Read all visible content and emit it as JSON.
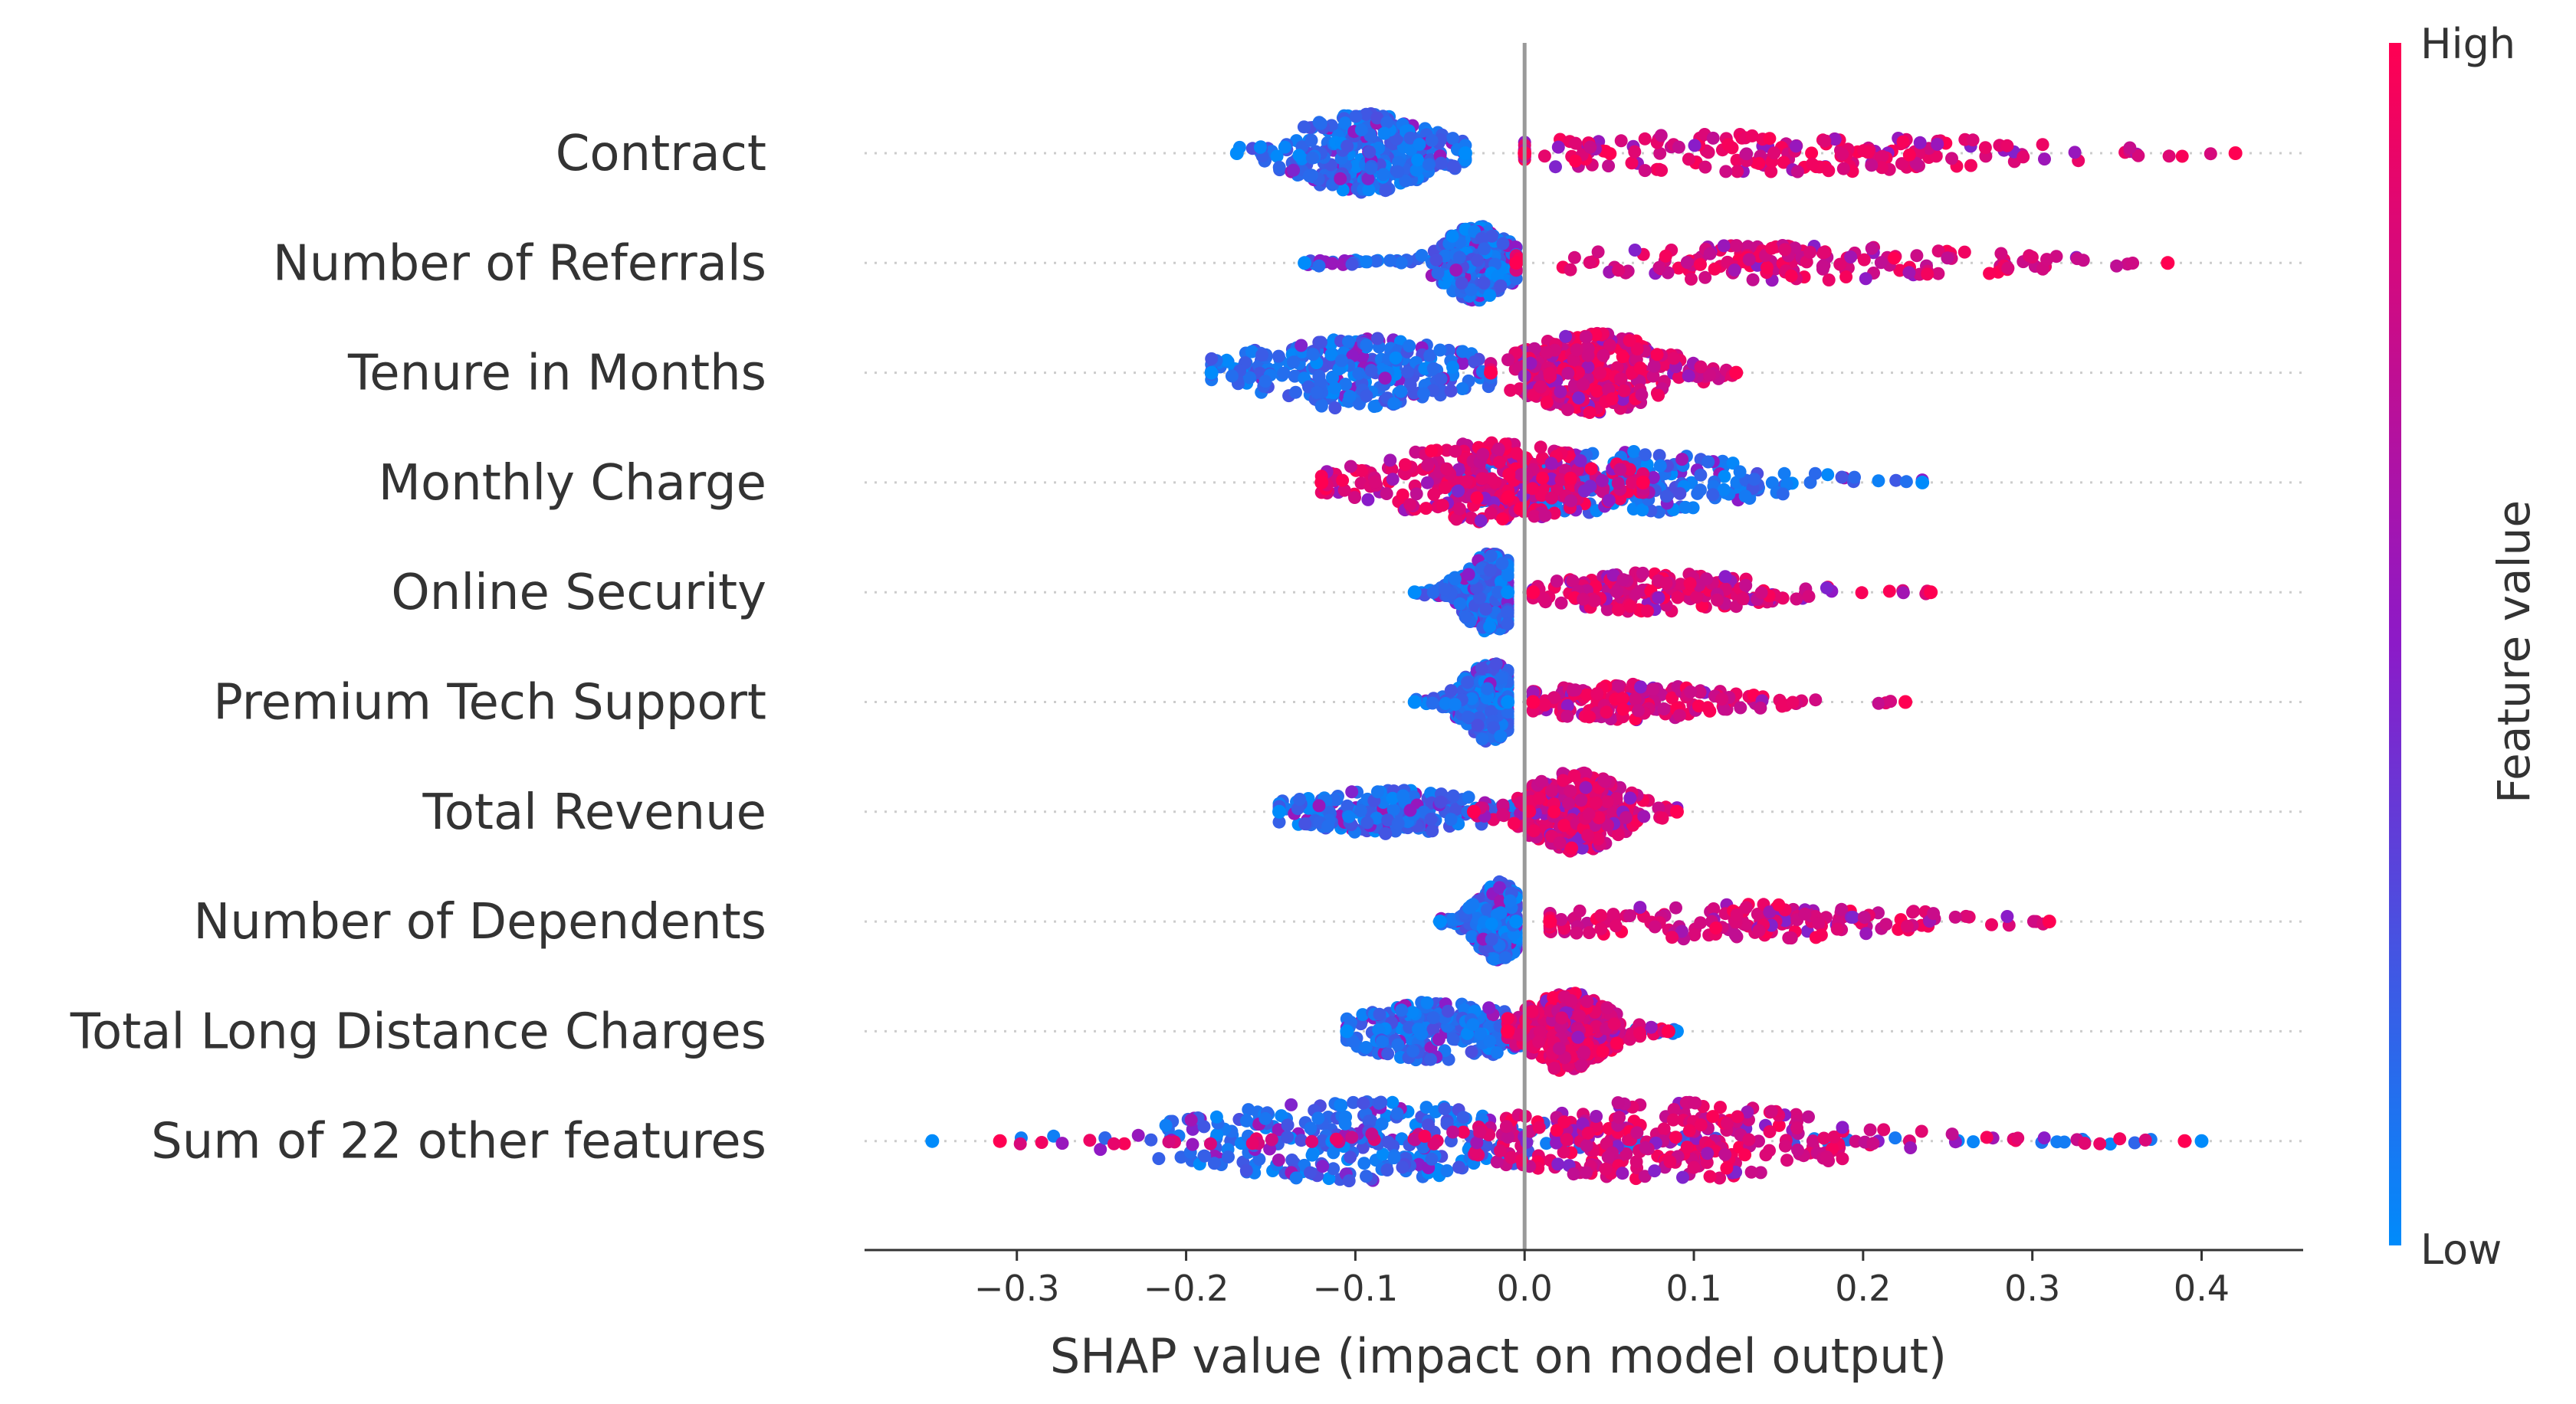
{
  "chart_data": {
    "type": "scatter",
    "subtype": "shap-beeswarm",
    "xlabel": "SHAP value (impact on model output)",
    "xlim": [
      -0.39,
      0.46
    ],
    "xticks": [
      -0.3,
      -0.2,
      -0.1,
      0.0,
      0.1,
      0.2,
      0.3,
      0.4
    ],
    "xtick_labels": [
      "−0.3",
      "−0.2",
      "−0.1",
      "0.0",
      "0.1",
      "0.2",
      "0.3",
      "0.4"
    ],
    "zero_line": 0.0,
    "colorbar": {
      "title": "Feature value",
      "high_label": "High",
      "low_label": "Low",
      "high_color": "#ff0052",
      "mid_color": "#8c1ac8",
      "low_color": "#008bfb"
    },
    "features": [
      {
        "name": "Contract",
        "low": {
          "min": -0.17,
          "max": -0.035,
          "center": -0.095,
          "spread": 0.025,
          "thickness": 1.0
        },
        "high": {
          "min": 0.0,
          "max": 0.42,
          "center": 0.14,
          "spread": 0.09,
          "thickness": 0.5
        }
      },
      {
        "name": "Number of Referrals",
        "low": {
          "min": -0.13,
          "max": -0.005,
          "center": -0.028,
          "spread": 0.012,
          "thickness": 0.95
        },
        "high": {
          "min": -0.005,
          "max": 0.38,
          "center": 0.15,
          "spread": 0.08,
          "thickness": 0.45
        }
      },
      {
        "name": "Tenure in Months",
        "low": {
          "min": -0.185,
          "max": -0.02,
          "center": -0.1,
          "spread": 0.04,
          "thickness": 0.9
        },
        "high": {
          "min": -0.02,
          "max": 0.125,
          "center": 0.04,
          "spread": 0.025,
          "thickness": 1.0
        }
      },
      {
        "name": "Monthly Charge",
        "low": {
          "min": -0.05,
          "max": 0.235,
          "center": 0.05,
          "spread": 0.05,
          "thickness": 0.8
        },
        "high": {
          "min": -0.12,
          "max": 0.07,
          "center": -0.02,
          "spread": 0.04,
          "thickness": 1.0
        }
      },
      {
        "name": "Online Security",
        "low": {
          "min": -0.065,
          "max": -0.01,
          "center": -0.02,
          "spread": 0.01,
          "thickness": 1.0
        },
        "high": {
          "min": 0.005,
          "max": 0.24,
          "center": 0.08,
          "spread": 0.04,
          "thickness": 0.5
        }
      },
      {
        "name": "Premium Tech Support",
        "low": {
          "min": -0.065,
          "max": -0.01,
          "center": -0.02,
          "spread": 0.01,
          "thickness": 1.0
        },
        "high": {
          "min": 0.005,
          "max": 0.225,
          "center": 0.06,
          "spread": 0.035,
          "thickness": 0.45
        }
      },
      {
        "name": "Total Revenue",
        "low": {
          "min": -0.145,
          "max": 0.0,
          "center": -0.08,
          "spread": 0.035,
          "thickness": 0.55
        },
        "high": {
          "min": -0.03,
          "max": 0.09,
          "center": 0.03,
          "spread": 0.018,
          "thickness": 1.0
        }
      },
      {
        "name": "Number of Dependents",
        "low": {
          "min": -0.05,
          "max": -0.005,
          "center": -0.015,
          "spread": 0.008,
          "thickness": 1.0
        },
        "high": {
          "min": 0.015,
          "max": 0.31,
          "center": 0.12,
          "spread": 0.07,
          "thickness": 0.45
        }
      },
      {
        "name": "Total Long Distance Charges",
        "low": {
          "min": -0.105,
          "max": 0.09,
          "center": -0.05,
          "spread": 0.03,
          "thickness": 0.75
        },
        "high": {
          "min": -0.01,
          "max": 0.085,
          "center": 0.025,
          "spread": 0.015,
          "thickness": 1.0
        }
      },
      {
        "name": "Sum of 22 other features",
        "low": {
          "min": -0.35,
          "max": 0.4,
          "center": -0.1,
          "spread": 0.06,
          "thickness": 1.0
        },
        "high": {
          "min": -0.31,
          "max": 0.39,
          "center": 0.08,
          "spread": 0.06,
          "thickness": 1.0
        }
      }
    ]
  }
}
